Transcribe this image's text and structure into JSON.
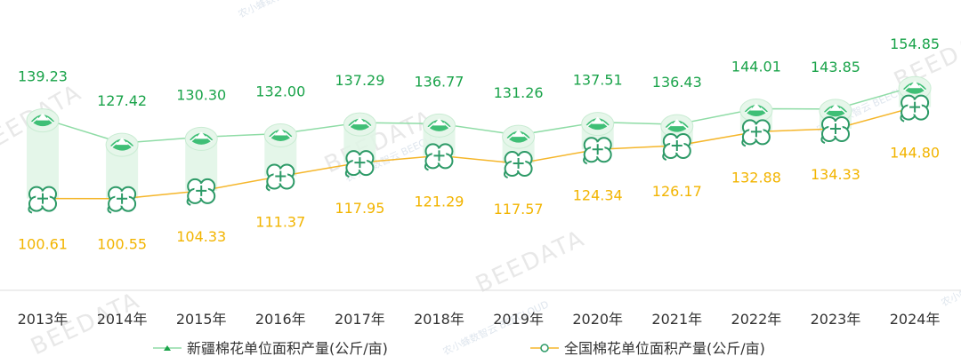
{
  "chart_data": {
    "type": "line",
    "categories": [
      "2013年",
      "2014年",
      "2015年",
      "2016年",
      "2017年",
      "2018年",
      "2019年",
      "2020年",
      "2021年",
      "2022年",
      "2023年",
      "2024年"
    ],
    "series": [
      {
        "name": "新疆棉花单位面积产量(公斤/亩)",
        "color": "#1aa34a",
        "line_color": "#8fdca6",
        "values": [
          139.23,
          127.42,
          130.3,
          132.0,
          137.29,
          136.77,
          131.26,
          137.51,
          136.43,
          144.01,
          143.85,
          154.85
        ]
      },
      {
        "name": "全国棉花单位面积产量(公斤/亩)",
        "color": "#f2b400",
        "line_color": "#f5b62a",
        "values": [
          100.61,
          100.55,
          104.33,
          111.37,
          117.95,
          121.29,
          117.57,
          124.34,
          126.17,
          132.88,
          134.33,
          144.8
        ]
      }
    ],
    "legend_position": "bottom",
    "grid": false
  },
  "watermarks": [
    "BEEDATA",
    "农小蜂数智云",
    "BEECLOUD"
  ]
}
